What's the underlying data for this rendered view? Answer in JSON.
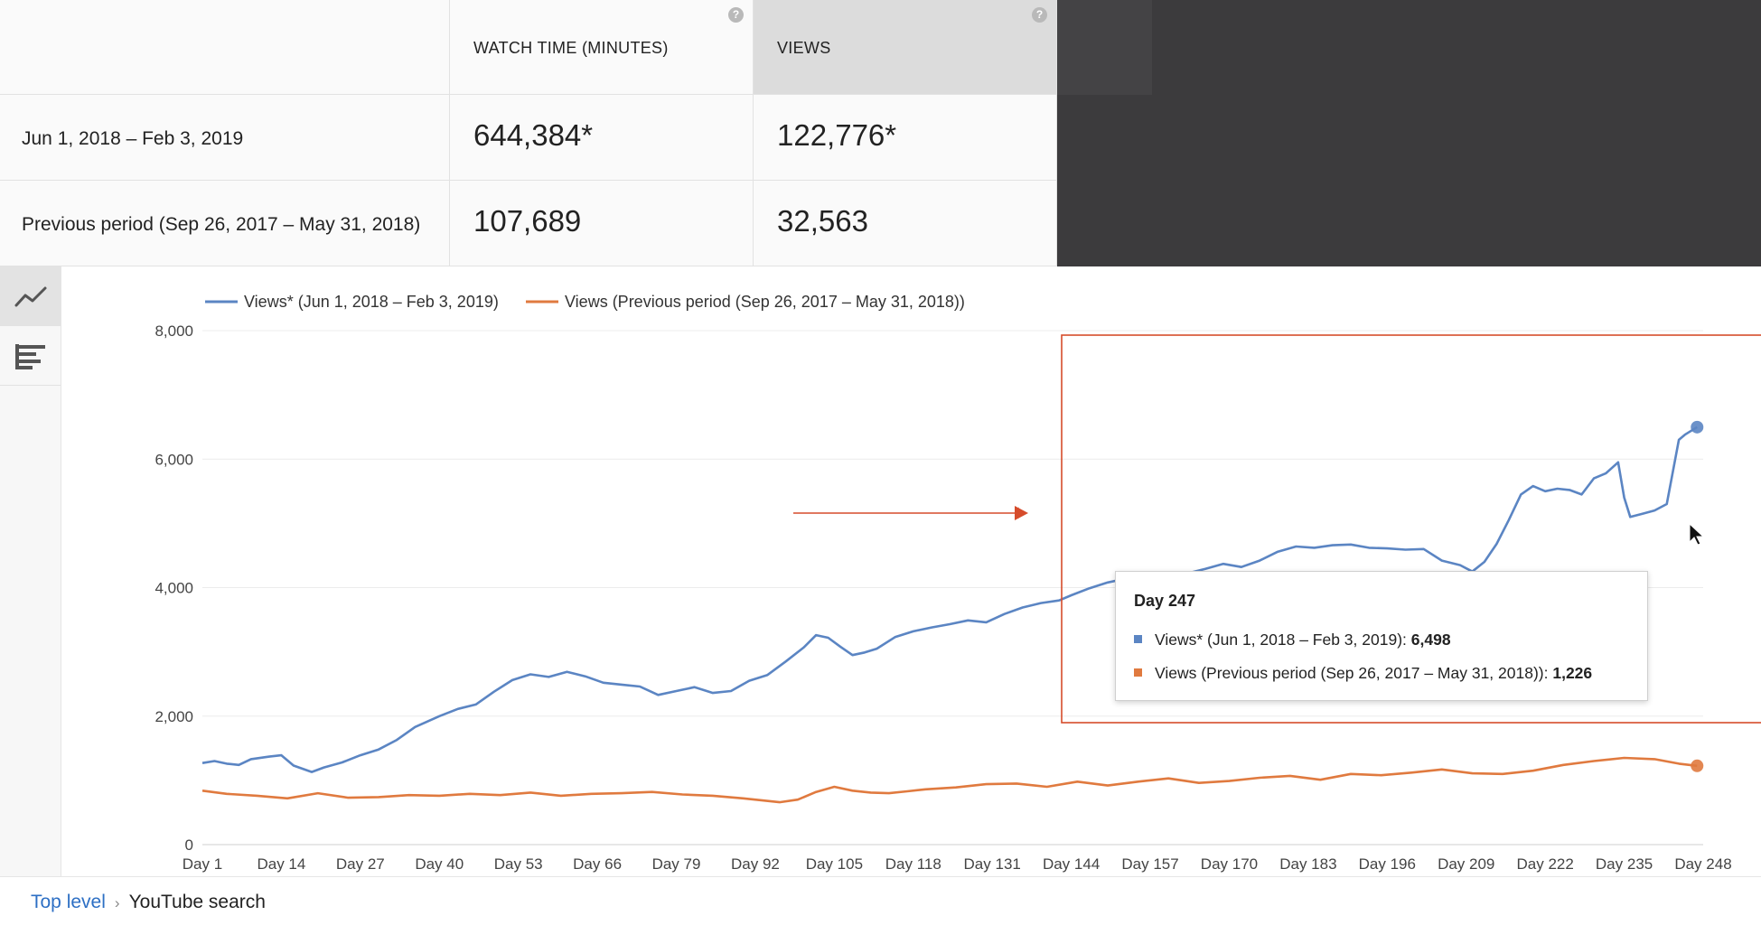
{
  "metrics": {
    "columns": [
      "WATCH TIME (MINUTES)",
      "VIEWS"
    ],
    "rows": [
      {
        "label": "Jun 1, 2018 – Feb 3, 2019",
        "watch_time": "644,384*",
        "views": "122,776*"
      },
      {
        "label": "Previous period (Sep 26, 2017 – May 31, 2018)",
        "watch_time": "107,689",
        "views": "32,563"
      }
    ],
    "help_glyph": "?"
  },
  "tools": [
    "line-chart-icon",
    "bar-chart-icon"
  ],
  "colors": {
    "current": "#5b85c3",
    "previous": "#e07a3f",
    "highlight": "#d64c2b",
    "grid": "#ececec"
  },
  "chart_data": {
    "type": "line",
    "legend": [
      "Views* (Jun 1, 2018 – Feb 3, 2019)",
      "Views (Previous period (Sep 26, 2017 – May 31, 2018))"
    ],
    "legend_position": "top-left",
    "x_range": [
      1,
      248
    ],
    "x_ticks": [
      "Day 1",
      "Day 14",
      "Day 27",
      "Day 40",
      "Day 53",
      "Day 66",
      "Day 79",
      "Day 92",
      "Day 105",
      "Day 118",
      "Day 131",
      "Day 144",
      "Day 157",
      "Day 170",
      "Day 183",
      "Day 196",
      "Day 209",
      "Day 222",
      "Day 235",
      "Day 248"
    ],
    "ylim": [
      0,
      8000
    ],
    "y_ticks": [
      "0",
      "2,000",
      "4,000",
      "6,000",
      "8,000"
    ],
    "grid": true,
    "series": [
      {
        "name": "Views* (Jun 1, 2018 – Feb 3, 2019)",
        "x": [
          1,
          3,
          5,
          7,
          9,
          12,
          14,
          16,
          19,
          21,
          24,
          27,
          30,
          33,
          36,
          40,
          43,
          46,
          49,
          52,
          55,
          58,
          61,
          64,
          67,
          70,
          73,
          76,
          79,
          82,
          85,
          88,
          91,
          94,
          97,
          100,
          102,
          104,
          106,
          108,
          110,
          112,
          115,
          118,
          121,
          124,
          127,
          130,
          133,
          136,
          139,
          142,
          144,
          147,
          150,
          153,
          156,
          158,
          160,
          163,
          166,
          169,
          172,
          175,
          178,
          181,
          184,
          187,
          190,
          193,
          196,
          199,
          202,
          205,
          208,
          210,
          212,
          214,
          216,
          218,
          220,
          222,
          224,
          226,
          228,
          230,
          232,
          234,
          235,
          236,
          238,
          240,
          242,
          244,
          245,
          247
        ],
        "y": [
          1270,
          1300,
          1260,
          1240,
          1330,
          1370,
          1390,
          1230,
          1130,
          1200,
          1280,
          1390,
          1480,
          1630,
          1830,
          2000,
          2110,
          2180,
          2380,
          2560,
          2650,
          2610,
          2690,
          2620,
          2520,
          2490,
          2460,
          2330,
          2390,
          2450,
          2360,
          2390,
          2550,
          2640,
          2850,
          3070,
          3260,
          3220,
          3080,
          2950,
          2990,
          3050,
          3230,
          3320,
          3380,
          3430,
          3490,
          3460,
          3590,
          3690,
          3760,
          3800,
          3880,
          3990,
          4080,
          4140,
          4180,
          4200,
          4160,
          4220,
          4290,
          4370,
          4320,
          4420,
          4560,
          4640,
          4620,
          4660,
          4670,
          4620,
          4610,
          4590,
          4600,
          4420,
          4350,
          4250,
          4400,
          4680,
          5050,
          5450,
          5580,
          5500,
          5540,
          5520,
          5450,
          5700,
          5780,
          5950,
          5400,
          5100,
          5150,
          5200,
          5300,
          6300,
          6380,
          6498
        ]
      },
      {
        "name": "Views (Previous period (Sep 26, 2017 – May 31, 2018))",
        "x": [
          1,
          5,
          10,
          15,
          20,
          25,
          30,
          35,
          40,
          45,
          50,
          55,
          60,
          65,
          70,
          75,
          80,
          85,
          90,
          93,
          96,
          99,
          102,
          105,
          108,
          111,
          114,
          117,
          120,
          125,
          130,
          135,
          140,
          145,
          150,
          155,
          160,
          165,
          170,
          175,
          180,
          185,
          190,
          195,
          200,
          205,
          210,
          215,
          220,
          225,
          230,
          235,
          240,
          244,
          247
        ],
        "y": [
          840,
          790,
          760,
          720,
          800,
          730,
          740,
          770,
          760,
          790,
          770,
          810,
          760,
          790,
          800,
          820,
          780,
          760,
          720,
          690,
          660,
          700,
          820,
          900,
          840,
          810,
          800,
          830,
          860,
          890,
          940,
          950,
          900,
          980,
          920,
          980,
          1030,
          960,
          990,
          1040,
          1070,
          1010,
          1100,
          1080,
          1120,
          1170,
          1110,
          1100,
          1150,
          1240,
          1300,
          1350,
          1330,
          1260,
          1226
        ]
      }
    ],
    "tooltip": {
      "title": "Day 247",
      "rows": [
        {
          "label": "Views* (Jun 1, 2018 – Feb 3, 2019):",
          "value": "6,498"
        },
        {
          "label": "Views (Previous period (Sep 26, 2017 – May 31, 2018)):",
          "value": "1,226"
        }
      ]
    }
  },
  "breadcrumb": {
    "link": "Top level",
    "separator": "›",
    "current": "YouTube search"
  }
}
